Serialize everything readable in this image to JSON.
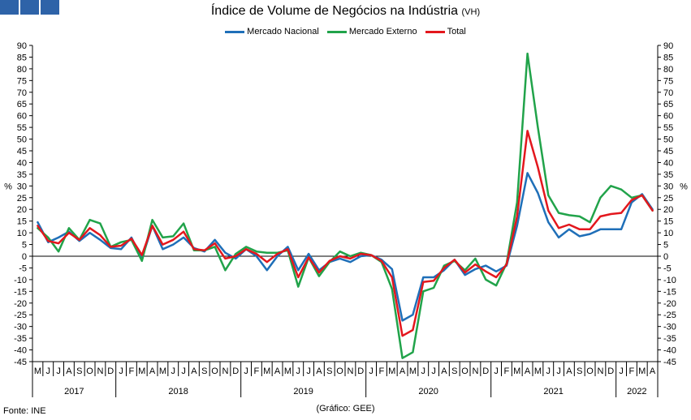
{
  "header": {
    "title": "Índice de Volume de Negócios na Indústria",
    "title_suffix": "(VH)"
  },
  "footer": {
    "source": "Fonte: INE",
    "credit": "(Gráfico: GEE)"
  },
  "chart_data": {
    "type": "line",
    "title": "Índice de Volume de Negócios na Indústria",
    "subtitle": "(VH)",
    "ylabel_left": "%",
    "ylabel_right": "%",
    "ylim": [
      -45,
      90
    ],
    "yticks": [
      90,
      85,
      80,
      75,
      70,
      65,
      60,
      55,
      50,
      45,
      40,
      35,
      30,
      25,
      20,
      15,
      10,
      5,
      0,
      -5,
      -10,
      -15,
      -20,
      -25,
      -30,
      -35,
      -40,
      -45
    ],
    "grid": false,
    "legend_position": "top-center",
    "months": [
      "M",
      "J",
      "J",
      "A",
      "S",
      "O",
      "N",
      "D",
      "J",
      "F",
      "M",
      "A",
      "M",
      "J",
      "J",
      "A",
      "S",
      "O",
      "N",
      "D",
      "J",
      "F",
      "M",
      "A",
      "M",
      "J",
      "J",
      "A",
      "S",
      "O",
      "N",
      "D",
      "J",
      "F",
      "M",
      "A",
      "M",
      "J",
      "J",
      "A",
      "S",
      "O",
      "N",
      "D",
      "J",
      "F",
      "M",
      "A",
      "M",
      "J",
      "J",
      "A",
      "S",
      "O",
      "N",
      "D",
      "J",
      "F",
      "M",
      "A"
    ],
    "years": [
      {
        "label": "2017",
        "start": 0,
        "end": 8
      },
      {
        "label": "2018",
        "start": 8,
        "end": 20
      },
      {
        "label": "2019",
        "start": 20,
        "end": 32
      },
      {
        "label": "2020",
        "start": 32,
        "end": 44
      },
      {
        "label": "2021",
        "start": 44,
        "end": 56
      },
      {
        "label": "2022",
        "start": 56,
        "end": 60
      }
    ],
    "series": [
      {
        "name": "Mercado Nacional",
        "color": "#1f6fb8",
        "values": [
          14.5,
          6,
          8,
          10.5,
          6.5,
          10,
          7,
          3.5,
          3,
          8,
          -1,
          13,
          3,
          5,
          8,
          3.5,
          2,
          7,
          1.5,
          -1,
          3,
          0,
          -6,
          0,
          4,
          -6,
          1,
          -6,
          -2.5,
          -1,
          -2.5,
          0,
          0.5,
          -1.5,
          -5.5,
          -27.5,
          -25,
          -9,
          -9,
          -6,
          -1.5,
          -8,
          -5.5,
          -4,
          -6.5,
          -4,
          13,
          35.5,
          27,
          14.5,
          8,
          11.5,
          8.5,
          9.5,
          11.5,
          11.5,
          11.5,
          23,
          26.5,
          20
        ]
      },
      {
        "name": "Mercado Externo",
        "color": "#21a34a",
        "values": [
          12,
          8,
          2,
          12,
          7,
          15.5,
          14,
          4,
          6,
          7,
          -2,
          15.5,
          8,
          8.5,
          14,
          2.5,
          2.5,
          4,
          -6,
          1,
          4,
          2,
          1.5,
          1.5,
          2.5,
          -13,
          -0.5,
          -8.5,
          -2.5,
          2,
          0,
          1.5,
          0.5,
          -2.5,
          -14,
          -43.5,
          -41,
          -15,
          -13.5,
          -4,
          -2,
          -6,
          -1,
          -10,
          -12.5,
          -3,
          23,
          86.5,
          55,
          26,
          18.5,
          17.5,
          17,
          14.5,
          25,
          30,
          28.5,
          25,
          26,
          19.5
        ]
      },
      {
        "name": "Total",
        "color": "#e3171d",
        "values": [
          13,
          6.5,
          5.5,
          10,
          7,
          12,
          9,
          4,
          4.5,
          7.5,
          0.5,
          13,
          5,
          7,
          10.5,
          3,
          2.5,
          5.5,
          -1,
          0,
          3,
          1,
          -2.5,
          1,
          3,
          -9,
          -0.5,
          -7,
          -2,
          0,
          -1,
          1,
          0.5,
          -2,
          -9,
          -34,
          -31.5,
          -11,
          -10.5,
          -5,
          -1.5,
          -7,
          -3.5,
          -6.5,
          -9,
          -3.5,
          17,
          53.5,
          38,
          19.5,
          12,
          13.5,
          11.5,
          11.5,
          17,
          18,
          18.5,
          24,
          26,
          19.5
        ]
      }
    ]
  }
}
